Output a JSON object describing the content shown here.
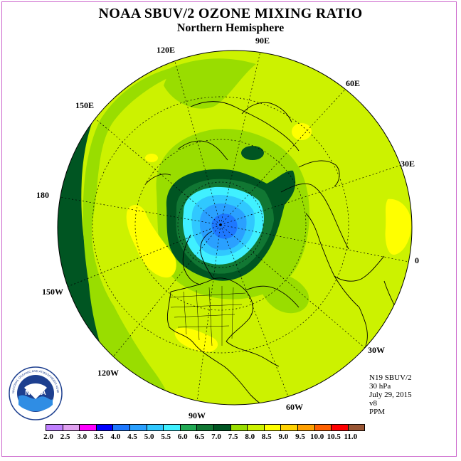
{
  "header": {
    "title": "NOAA SBUV/2 OZONE MIXING RATIO",
    "subtitle": "Northern Hemisphere"
  },
  "map": {
    "projection": "north-polar-stereographic",
    "longitude_labels": [
      "90E",
      "60E",
      "30E",
      "0",
      "30W",
      "60W",
      "90W",
      "120W",
      "150W",
      "180",
      "150E",
      "120E"
    ]
  },
  "info": {
    "instrument": "N19 SBUV/2",
    "level": "30 hPa",
    "date": "July 29, 2015",
    "version": "v8",
    "units": "PPM"
  },
  "logo": {
    "text": "NOAA",
    "ring_text": "NATIONAL OCEANIC AND ATMOSPHERIC ADMINISTRATION · U.S. DEPARTMENT OF COMMERCE"
  },
  "legend": {
    "ticks": [
      "2.0",
      "2.5",
      "3.0",
      "3.5",
      "4.0",
      "4.5",
      "5.0",
      "5.5",
      "6.0",
      "6.5",
      "7.0",
      "7.5",
      "8.0",
      "8.5",
      "9.0",
      "9.5",
      "10.0",
      "10.5",
      "11.0"
    ],
    "colors": [
      "#c080ff",
      "#e0a0f0",
      "#ff00ff",
      "#0000ff",
      "#1e78ff",
      "#2aa0ff",
      "#30c8ff",
      "#40f0ff",
      "#22aa55",
      "#117733",
      "#005522",
      "#99dd00",
      "#ccf200",
      "#ffff00",
      "#ffd200",
      "#ffa000",
      "#ff6000",
      "#ff0000",
      "#995533"
    ]
  }
}
